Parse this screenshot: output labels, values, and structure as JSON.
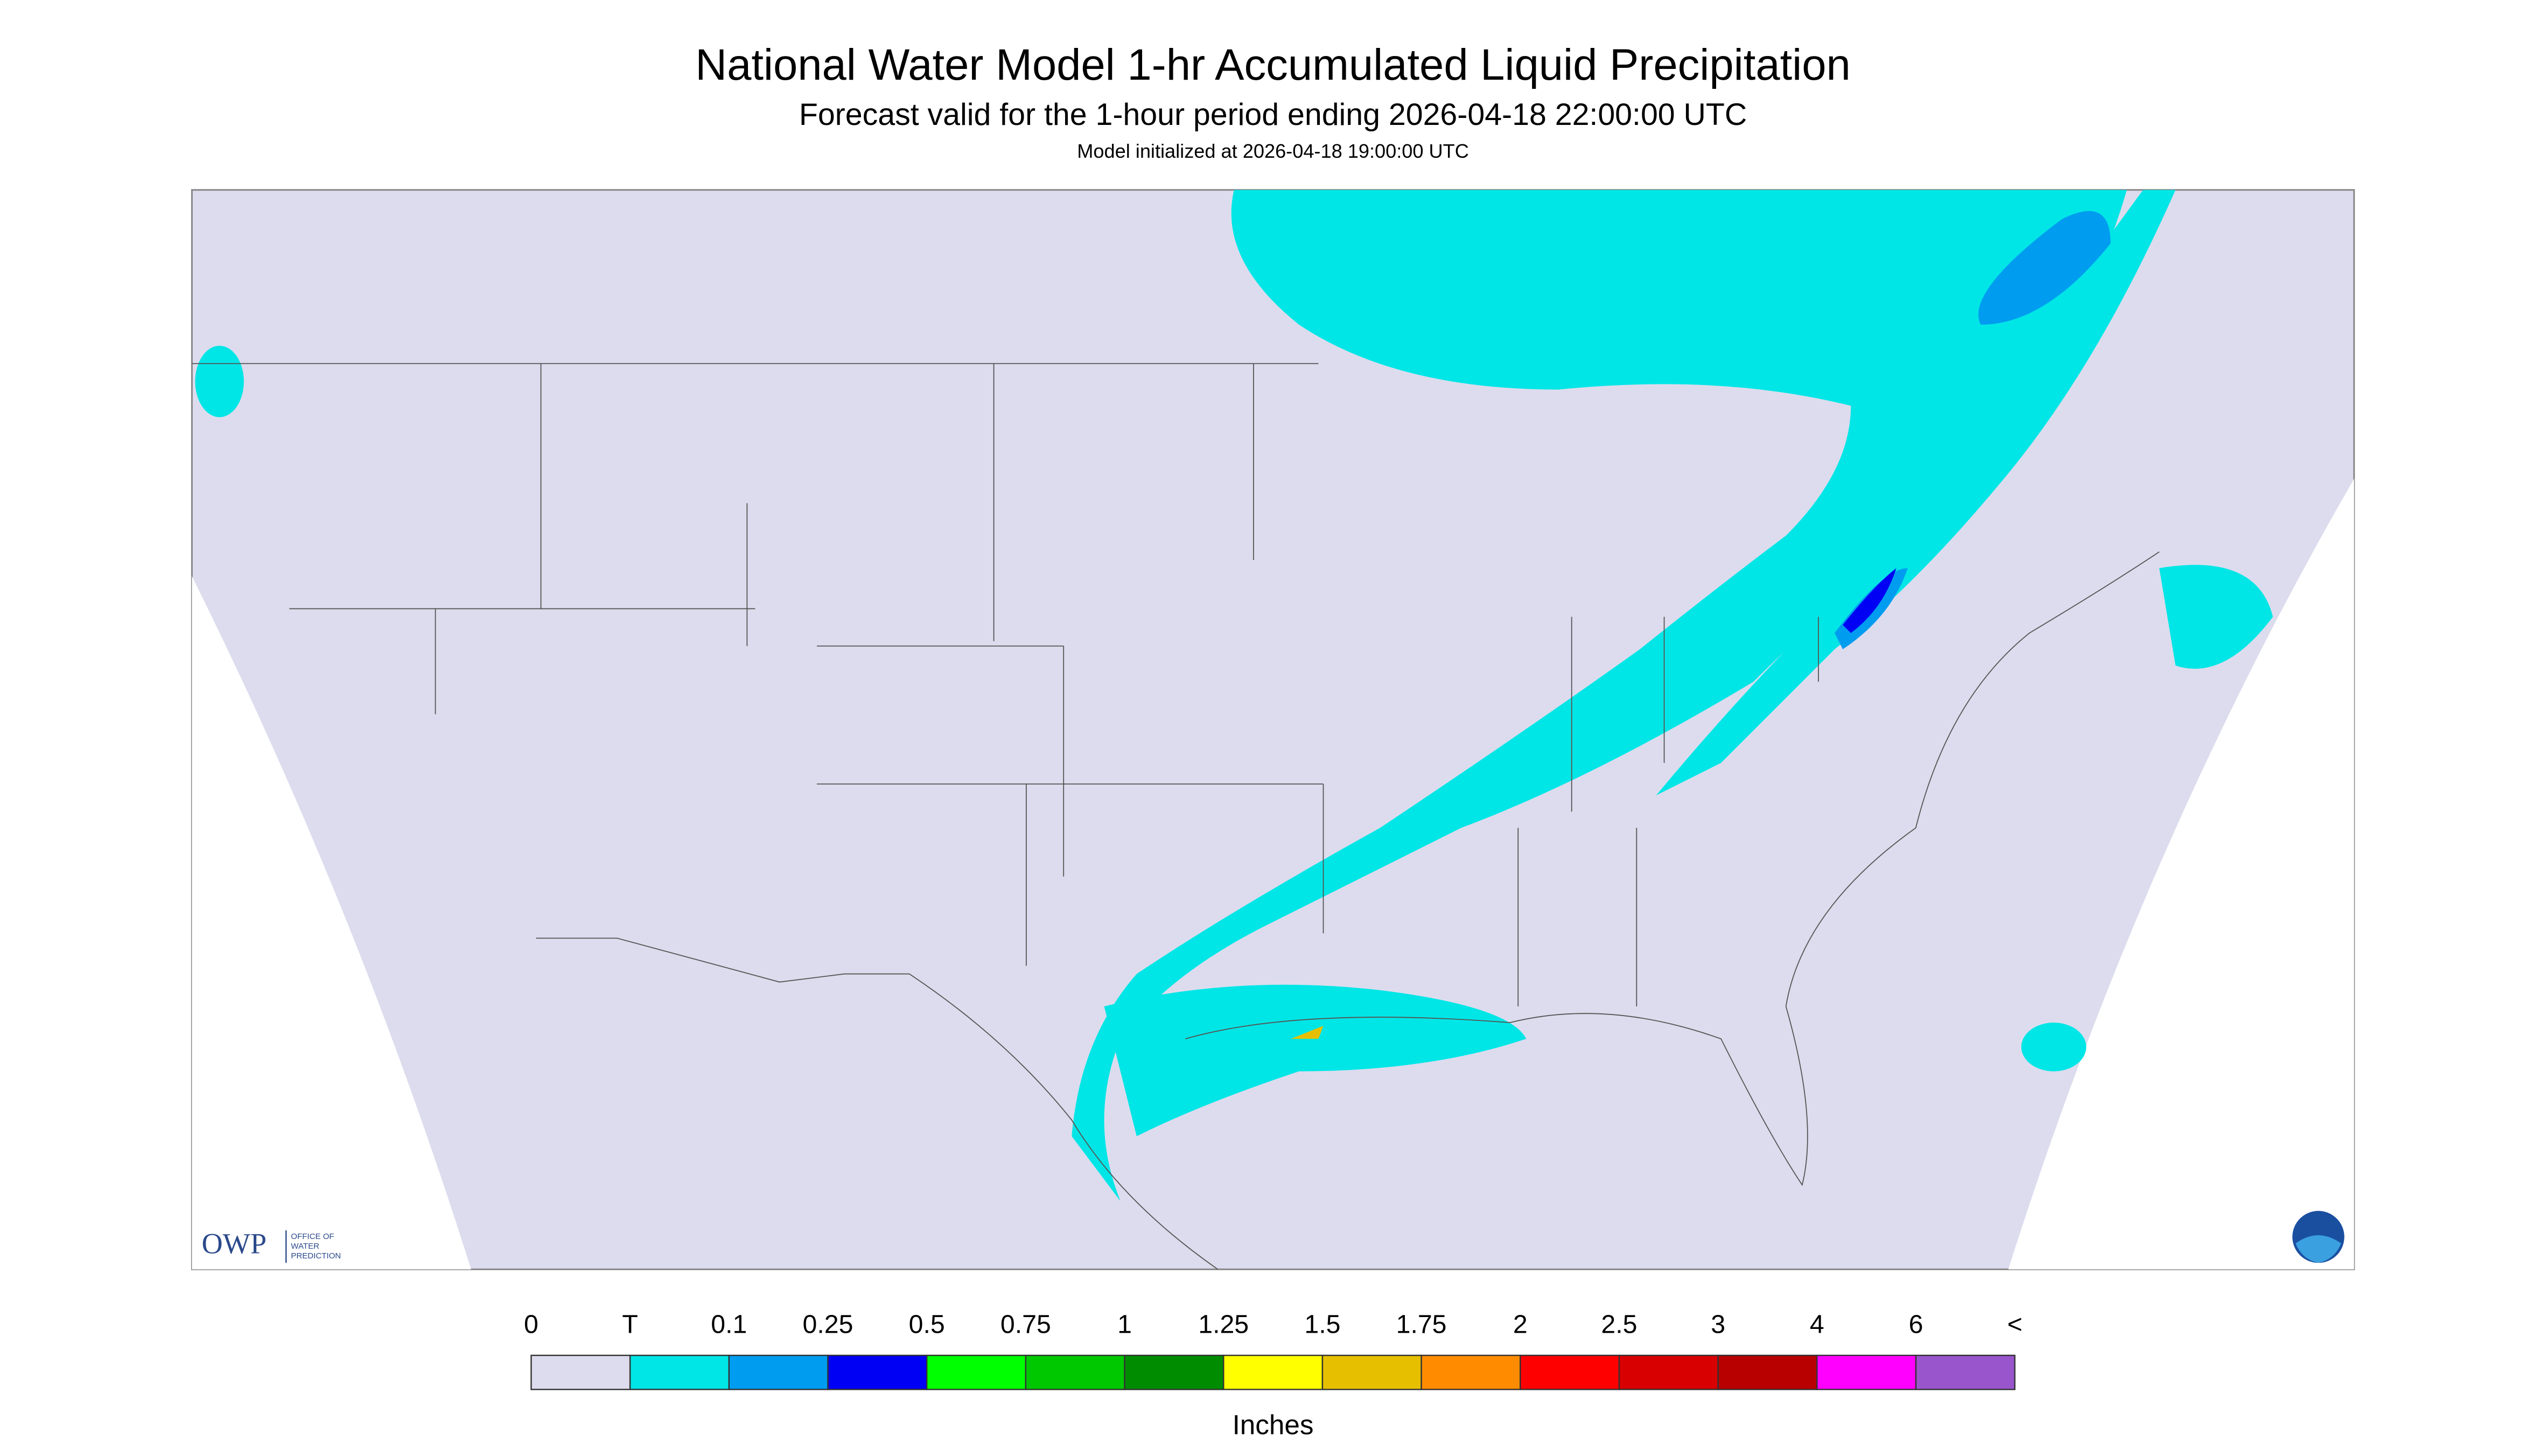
{
  "header": {
    "title": "National Water Model 1-hr Accumulated Liquid Precipitation",
    "subtitle": "Forecast valid for the 1-hour period ending 2026-04-18 22:00:00 UTC",
    "init": "Model initialized at 2026-04-18 19:00:00 UTC"
  },
  "map": {
    "logo": {
      "abbr": "OWP",
      "name": [
        "OFFICE OF",
        "WATER",
        "PREDICTION"
      ]
    }
  },
  "legend": {
    "labels": [
      "0",
      "T",
      "0.1",
      "0.25",
      "0.5",
      "0.75",
      "1",
      "1.25",
      "1.5",
      "1.75",
      "2",
      "2.5",
      "3",
      "4",
      "6",
      "<"
    ],
    "colors": [
      "#dcdcee",
      "#00e6e6",
      "#009cf0",
      "#0000f5",
      "#00ff00",
      "#00c800",
      "#008c00",
      "#ffff00",
      "#e6c000",
      "#ff8c00",
      "#ff0000",
      "#d80000",
      "#b80000",
      "#ff00ff",
      "#9955cc"
    ],
    "unit": "Inches"
  }
}
